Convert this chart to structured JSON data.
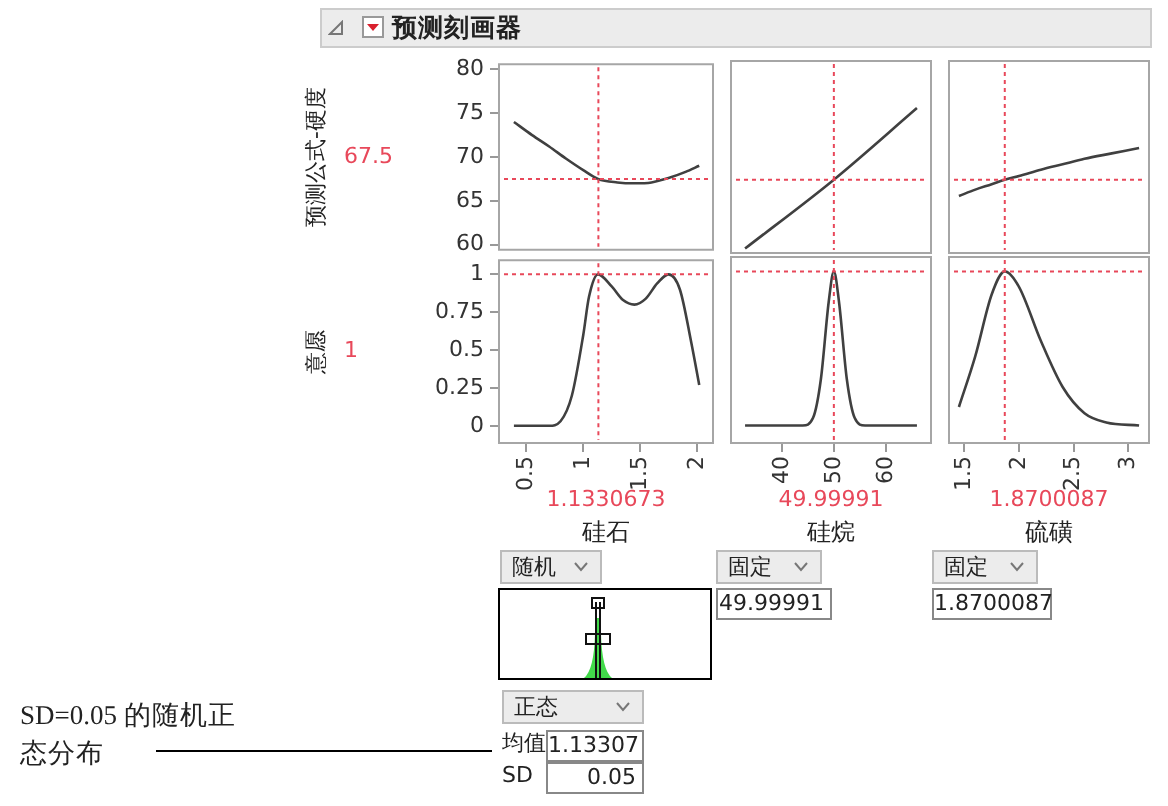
{
  "chart_data": [
    {
      "type": "line",
      "title": "预测刻画器",
      "ylabel": "预测公式-硬度",
      "tick_labels": "y",
      "marker": "none",
      "color": "#404040",
      "x": [
        0.39,
        0.55,
        0.7,
        0.85,
        1.0,
        1.13,
        1.3,
        1.45,
        1.6,
        1.75,
        1.9,
        2.02
      ],
      "values": [
        74,
        72.5,
        71.2,
        69.8,
        68.5,
        67.5,
        67.1,
        67.0,
        67.1,
        67.6,
        68.3,
        69
      ],
      "xlim": [
        0.25,
        2.15
      ],
      "ylim": [
        59.3,
        80.7
      ],
      "yticks": [
        60,
        65,
        70,
        75,
        80
      ],
      "ref_lines": [
        {
          "axis": "x",
          "value": 1.1330673,
          "color": "#e8485a",
          "line_style": "dotted"
        },
        {
          "axis": "y",
          "value": 67.5,
          "label": "67.5",
          "color": "#e8485a",
          "line_style": "dotted"
        }
      ]
    },
    {
      "type": "line",
      "tick_labels": false,
      "marker": "none",
      "color": "#404040",
      "x": [
        32.9,
        50,
        66
      ],
      "values": [
        59.9,
        67.5,
        75.4
      ],
      "xlim": [
        30,
        68.9
      ],
      "ylim": [
        59.3,
        80.7
      ],
      "ref_lines": [
        {
          "axis": "x",
          "value": 49.99991,
          "color": "#e8485a",
          "line_style": "dotted"
        },
        {
          "axis": "y",
          "value": 67.5,
          "color": "#e8485a",
          "line_style": "dotted"
        }
      ]
    },
    {
      "type": "line",
      "tick_labels": false,
      "marker": "none",
      "color": "#404040",
      "x": [
        1.45,
        1.6,
        1.75,
        1.87,
        2.0,
        2.2,
        2.4,
        2.6,
        2.85,
        3.1
      ],
      "values": [
        65.7,
        66.4,
        67.0,
        67.5,
        67.9,
        68.6,
        69.2,
        69.8,
        70.4,
        71
      ],
      "xlim": [
        1.35,
        3.2
      ],
      "ylim": [
        59.3,
        80.7
      ],
      "ref_lines": [
        {
          "axis": "x",
          "value": 1.8700087,
          "color": "#e8485a",
          "line_style": "dotted"
        },
        {
          "axis": "y",
          "value": 67.5,
          "color": "#e8485a",
          "line_style": "dotted"
        }
      ]
    },
    {
      "type": "line",
      "xlabel": "硅石",
      "ylabel": "意愿",
      "marker": "none",
      "color": "#404040",
      "x": [
        0.39,
        0.7,
        0.8,
        0.9,
        1.0,
        1.05,
        1.13,
        1.25,
        1.35,
        1.45,
        1.55,
        1.65,
        1.75,
        1.85,
        1.95,
        2.02
      ],
      "values": [
        0,
        0,
        0.03,
        0.2,
        0.6,
        0.85,
        1,
        0.92,
        0.83,
        0.8,
        0.84,
        0.94,
        1,
        0.9,
        0.55,
        0.27
      ],
      "xlim": [
        0.25,
        2.15
      ],
      "xticks": [
        0.5,
        1,
        1.5,
        2
      ],
      "ylim": [
        -0.12,
        1.1
      ],
      "yticks": [
        0,
        0.25,
        0.5,
        0.75,
        1
      ],
      "ref_lines": [
        {
          "axis": "x",
          "value": 1.1330673,
          "label": "1.1330673",
          "color": "#e8485a",
          "line_style": "dotted"
        },
        {
          "axis": "y",
          "value": 1,
          "label": "1",
          "color": "#e8485a",
          "line_style": "dotted"
        }
      ],
      "annotations": [
        "随机",
        "正态",
        "均值",
        "1.13307",
        "SD",
        "0.05",
        "SD=0.05 的随机正态分布"
      ]
    },
    {
      "type": "line",
      "xlabel": "硅烷",
      "tick_labels": "x",
      "marker": "none",
      "color": "#404040",
      "x": [
        32.9,
        44,
        46,
        47.5,
        49,
        50,
        51,
        52.5,
        54,
        56,
        66
      ],
      "values": [
        0,
        0,
        0.05,
        0.3,
        0.8,
        1,
        0.8,
        0.3,
        0.05,
        0,
        0
      ],
      "xlim": [
        30,
        68.9
      ],
      "xticks": [
        40,
        50,
        60
      ],
      "ylim": [
        -0.12,
        1.1
      ],
      "ref_lines": [
        {
          "axis": "x",
          "value": 49.99991,
          "label": "49.99991",
          "color": "#e8485a",
          "line_style": "dotted"
        },
        {
          "axis": "y",
          "value": 1,
          "color": "#e8485a",
          "line_style": "dotted"
        }
      ],
      "annotations": [
        "固定",
        "49.99991"
      ]
    },
    {
      "type": "line",
      "xlabel": "硫磺",
      "tick_labels": "x",
      "marker": "none",
      "color": "#404040",
      "x": [
        1.45,
        1.6,
        1.75,
        1.87,
        2.0,
        2.2,
        2.4,
        2.6,
        2.8,
        3.1
      ],
      "values": [
        0.12,
        0.45,
        0.85,
        1,
        0.9,
        0.55,
        0.25,
        0.08,
        0.02,
        0
      ],
      "xlim": [
        1.35,
        3.2
      ],
      "xticks": [
        1.5,
        2,
        2.5,
        3
      ],
      "ylim": [
        -0.12,
        1.1
      ],
      "ref_lines": [
        {
          "axis": "x",
          "value": 1.8700087,
          "label": "1.8700087",
          "color": "#e8485a",
          "line_style": "dotted"
        },
        {
          "axis": "y",
          "value": 1,
          "color": "#e8485a",
          "line_style": "dotted"
        }
      ],
      "annotations": [
        "固定",
        "1.8700087"
      ]
    }
  ]
}
